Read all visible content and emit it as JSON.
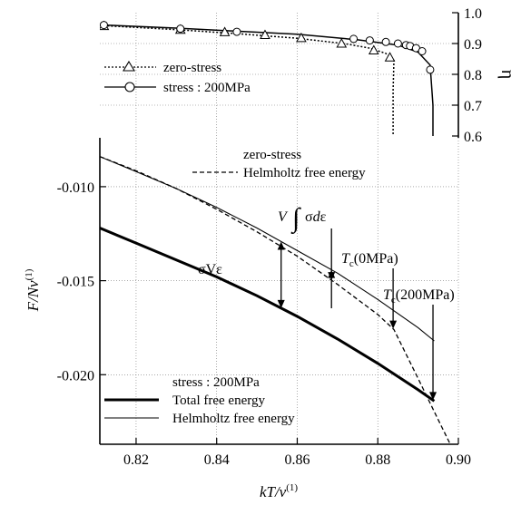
{
  "chart_data": [
    {
      "type": "line",
      "x_range": [
        0.811,
        0.9
      ],
      "ylim": [
        0.6,
        1.0
      ],
      "y_ticks": [
        0.6,
        0.7,
        0.8,
        0.9,
        1.0
      ],
      "y_tick_labels": [
        "0.6",
        "0.7",
        "0.8",
        "0.9",
        "1.0"
      ],
      "ylabel": "η",
      "y_axis_side": "right",
      "legend_position": "left",
      "grid": true,
      "series": [
        {
          "name": "zero-stress",
          "style": "dotted",
          "marker": "triangle",
          "x": [
            0.812,
            0.83,
            0.845,
            0.86,
            0.872,
            0.878,
            0.882,
            0.884,
            0.8838,
            0.8838
          ],
          "y": [
            0.958,
            0.945,
            0.932,
            0.917,
            0.899,
            0.885,
            0.868,
            0.845,
            0.75,
            0.6
          ]
        },
        {
          "name": "stress : 200MPa",
          "style": "solid",
          "marker": "circle",
          "x": [
            0.812,
            0.83,
            0.845,
            0.86,
            0.875,
            0.885,
            0.89,
            0.893,
            0.8937,
            0.8937
          ],
          "y": [
            0.96,
            0.95,
            0.94,
            0.93,
            0.912,
            0.895,
            0.872,
            0.83,
            0.7,
            0.6
          ]
        }
      ],
      "markers": {
        "zero-stress": {
          "x": [
            0.812,
            0.831,
            0.842,
            0.852,
            0.861,
            0.871,
            0.879,
            0.883
          ],
          "y": [
            0.957,
            0.945,
            0.937,
            0.928,
            0.918,
            0.9,
            0.878,
            0.855
          ]
        },
        "stress : 200MPa": {
          "x": [
            0.812,
            0.831,
            0.845,
            0.874,
            0.878,
            0.882,
            0.885,
            0.887,
            0.888,
            0.8895,
            0.891,
            0.893
          ],
          "y": [
            0.96,
            0.948,
            0.938,
            0.915,
            0.91,
            0.905,
            0.9,
            0.895,
            0.892,
            0.885,
            0.875,
            0.815
          ]
        }
      }
    },
    {
      "type": "line",
      "xlim": [
        0.811,
        0.9
      ],
      "ylim": [
        -0.0237,
        -0.0074
      ],
      "x_ticks": [
        0.82,
        0.84,
        0.86,
        0.88,
        0.9
      ],
      "x_tick_labels": [
        "0.82",
        "0.84",
        "0.86",
        "0.88",
        "0.90"
      ],
      "y_ticks": [
        -0.02,
        -0.015,
        -0.01
      ],
      "y_tick_labels": [
        "-0.020",
        "-0.015",
        "-0.010"
      ],
      "xlabel": "kT/v(1)",
      "ylabel": "F/Nv(1)",
      "grid": true,
      "series": [
        {
          "name": "Helmholtz free energy",
          "group": "zero-stress",
          "style": "dashed",
          "x": [
            0.811,
            0.82,
            0.83,
            0.84,
            0.85,
            0.86,
            0.87,
            0.88,
            0.884,
            0.89,
            0.895,
            0.898
          ],
          "y": [
            -0.0084,
            -0.00915,
            -0.0101,
            -0.0112,
            -0.0124,
            -0.0137,
            -0.0152,
            -0.0168,
            -0.0176,
            -0.0202,
            -0.0224,
            -0.0237
          ]
        },
        {
          "name": "Total free energy",
          "group": "stress : 200MPa",
          "style": "thick",
          "x": [
            0.811,
            0.82,
            0.83,
            0.84,
            0.85,
            0.86,
            0.87,
            0.88,
            0.89,
            0.894
          ],
          "y": [
            -0.0122,
            -0.013,
            -0.0139,
            -0.0148,
            -0.0158,
            -0.0169,
            -0.0181,
            -0.0194,
            -0.0208,
            -0.0214
          ]
        },
        {
          "name": "Helmholtz free energy",
          "group": "stress : 200MPa",
          "style": "thin",
          "x": [
            0.811,
            0.82,
            0.83,
            0.84,
            0.85,
            0.86,
            0.87,
            0.88,
            0.89,
            0.894
          ],
          "y": [
            -0.0084,
            -0.0092,
            -0.0101,
            -0.0111,
            -0.0122,
            -0.0134,
            -0.0146,
            -0.016,
            -0.0175,
            -0.0182
          ]
        }
      ],
      "legend": {
        "zero_stress_title": "zero-stress",
        "zero_stress_items": [
          "Helmholtz free energy"
        ],
        "stress_title": "stress : 200MPa",
        "stress_items": [
          "Total free energy",
          "Helmholtz free energy"
        ]
      },
      "annotations": [
        {
          "text": "σVε",
          "x": 0.856
        },
        {
          "text": "V∫σdε",
          "x": 0.8685
        },
        {
          "text": "Tc(0MPa)",
          "x": 0.8838
        },
        {
          "text": "Tc(200MPa)",
          "x": 0.8937
        }
      ]
    }
  ]
}
